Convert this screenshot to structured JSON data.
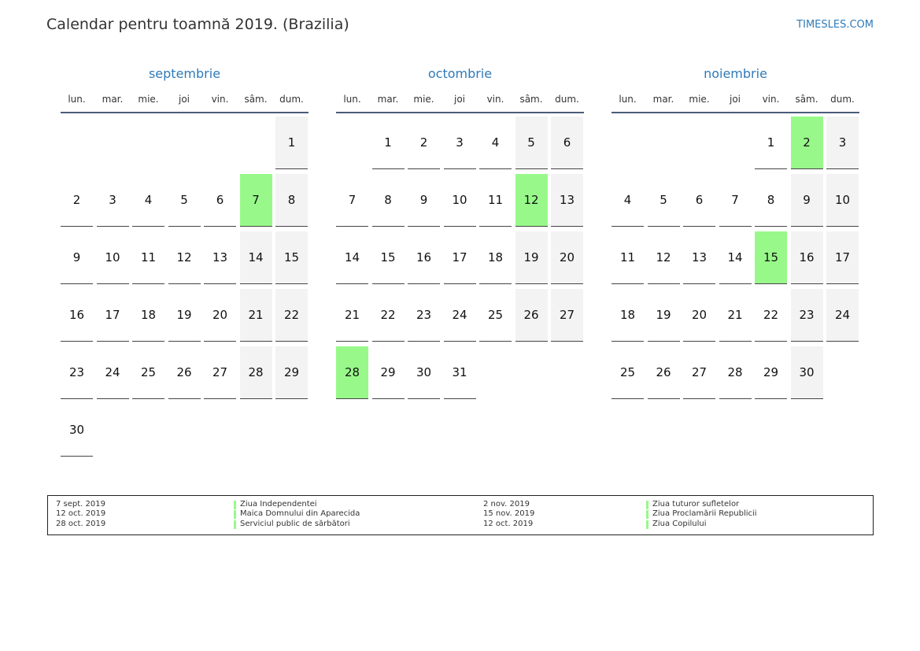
{
  "header": {
    "title": "Calendar pentru toamnă 2019. (Brazilia)",
    "site": "TIMESLES.COM"
  },
  "weekdays": [
    "lun.",
    "mar.",
    "mie.",
    "joi",
    "vin.",
    "sâm.",
    "dum."
  ],
  "months": [
    {
      "name": "septembrie",
      "holidays": [
        7
      ],
      "weeks": [
        [
          null,
          null,
          null,
          null,
          null,
          null,
          1
        ],
        [
          2,
          3,
          4,
          5,
          6,
          7,
          8
        ],
        [
          9,
          10,
          11,
          12,
          13,
          14,
          15
        ],
        [
          16,
          17,
          18,
          19,
          20,
          21,
          22
        ],
        [
          23,
          24,
          25,
          26,
          27,
          28,
          29
        ],
        [
          30
        ]
      ]
    },
    {
      "name": "octombrie",
      "holidays": [
        12,
        28
      ],
      "weeks": [
        [
          null,
          1,
          2,
          3,
          4,
          5,
          6
        ],
        [
          7,
          8,
          9,
          10,
          11,
          12,
          13
        ],
        [
          14,
          15,
          16,
          17,
          18,
          19,
          20
        ],
        [
          21,
          22,
          23,
          24,
          25,
          26,
          27
        ],
        [
          28,
          29,
          30,
          31
        ]
      ]
    },
    {
      "name": "noiembrie",
      "holidays": [
        2,
        15
      ],
      "weeks": [
        [
          null,
          null,
          null,
          null,
          1,
          2,
          3
        ],
        [
          4,
          5,
          6,
          7,
          8,
          9,
          10
        ],
        [
          11,
          12,
          13,
          14,
          15,
          16,
          17
        ],
        [
          18,
          19,
          20,
          21,
          22,
          23,
          24
        ],
        [
          25,
          26,
          27,
          28,
          29,
          30
        ]
      ]
    }
  ],
  "legend": [
    {
      "date": "7 sept. 2019",
      "name": "Ziua Independentei"
    },
    {
      "date": "12 oct. 2019",
      "name": "Maica Domnului din Aparecida"
    },
    {
      "date": "28 oct. 2019",
      "name": "Serviciul public de sărbători"
    },
    {
      "date": "2 nov. 2019",
      "name": "Ziua tuturor sufletelor"
    },
    {
      "date": "15 nov. 2019",
      "name": "Ziua Proclamării Republicii"
    },
    {
      "date": "12 oct. 2019",
      "name": "Ziua Copilului"
    }
  ]
}
